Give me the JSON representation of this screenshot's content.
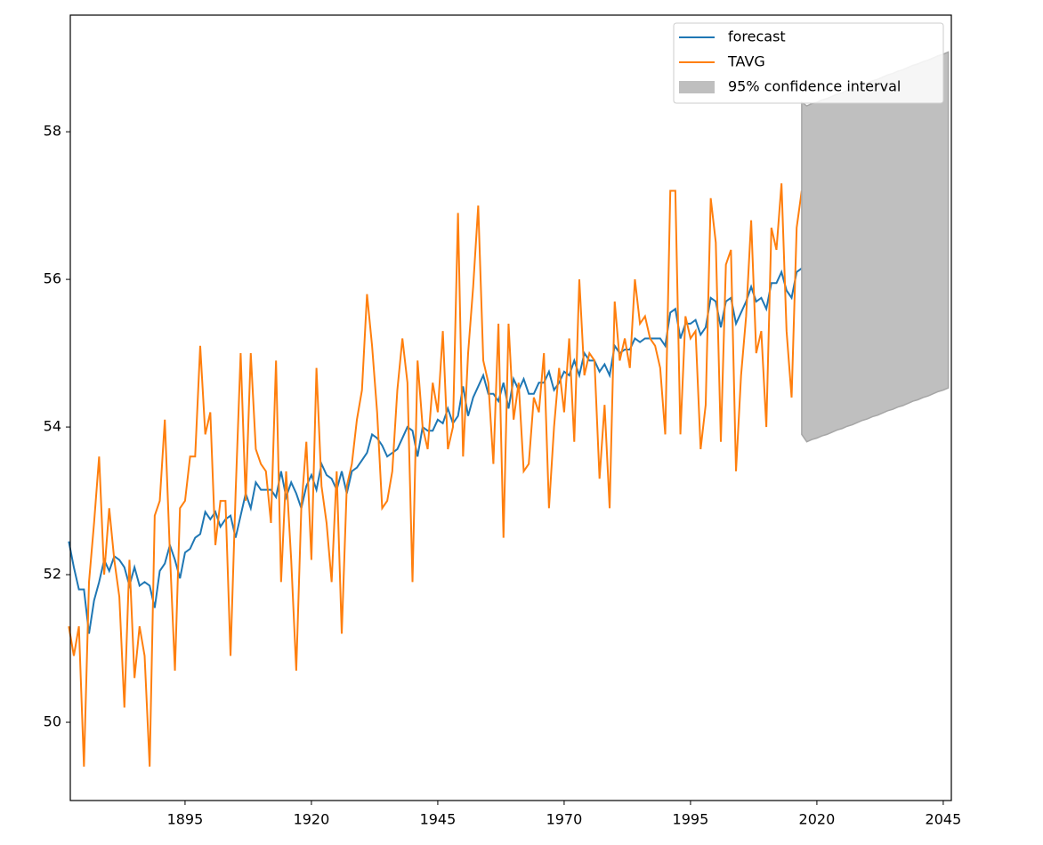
{
  "chart_data": {
    "type": "line",
    "x": [
      1872,
      1873,
      1874,
      1875,
      1876,
      1877,
      1878,
      1879,
      1880,
      1881,
      1882,
      1883,
      1884,
      1885,
      1886,
      1887,
      1888,
      1889,
      1890,
      1891,
      1892,
      1893,
      1894,
      1895,
      1896,
      1897,
      1898,
      1899,
      1900,
      1901,
      1902,
      1903,
      1904,
      1905,
      1906,
      1907,
      1908,
      1909,
      1910,
      1911,
      1912,
      1913,
      1914,
      1915,
      1916,
      1917,
      1918,
      1919,
      1920,
      1921,
      1922,
      1923,
      1924,
      1925,
      1926,
      1927,
      1928,
      1929,
      1930,
      1931,
      1932,
      1933,
      1934,
      1935,
      1936,
      1937,
      1938,
      1939,
      1940,
      1941,
      1942,
      1943,
      1944,
      1945,
      1946,
      1947,
      1948,
      1949,
      1950,
      1951,
      1952,
      1953,
      1954,
      1955,
      1956,
      1957,
      1958,
      1959,
      1960,
      1961,
      1962,
      1963,
      1964,
      1965,
      1966,
      1967,
      1968,
      1969,
      1970,
      1971,
      1972,
      1973,
      1974,
      1975,
      1976,
      1977,
      1978,
      1979,
      1980,
      1981,
      1982,
      1983,
      1984,
      1985,
      1986,
      1987,
      1988,
      1989,
      1990,
      1991,
      1992,
      1993,
      1994,
      1995,
      1996,
      1997,
      1998,
      1999,
      2000,
      2001,
      2002,
      2003,
      2004,
      2005,
      2006,
      2007,
      2008,
      2009,
      2010,
      2011,
      2012,
      2013,
      2014,
      2015,
      2016,
      2017,
      2018,
      2019,
      2020,
      2021,
      2022,
      2023,
      2024,
      2025,
      2026,
      2027,
      2028,
      2029,
      2030,
      2031,
      2032,
      2033,
      2034,
      2035,
      2036,
      2037,
      2038,
      2039,
      2040,
      2041,
      2042,
      2043,
      2044,
      2045,
      2046
    ],
    "series": [
      {
        "name": "forecast",
        "color": "#1f77b4",
        "values": [
          52.45,
          52.1,
          51.8,
          51.8,
          51.2,
          51.65,
          51.9,
          52.2,
          52.05,
          52.25,
          52.2,
          52.1,
          51.85,
          52.1,
          51.85,
          51.9,
          51.85,
          51.55,
          52.05,
          52.15,
          52.4,
          52.2,
          51.95,
          52.3,
          52.35,
          52.5,
          52.55,
          52.85,
          52.75,
          52.85,
          52.65,
          52.75,
          52.8,
          52.5,
          52.8,
          53.1,
          52.9,
          53.25,
          53.15,
          53.15,
          53.15,
          53.05,
          53.4,
          53.05,
          53.25,
          53.1,
          52.9,
          53.2,
          53.35,
          53.15,
          53.5,
          53.35,
          53.3,
          53.15,
          53.4,
          53.1,
          53.4,
          53.45,
          53.55,
          53.65,
          53.9,
          53.85,
          53.75,
          53.6,
          53.65,
          53.7,
          53.85,
          54.0,
          53.95,
          53.6,
          54.0,
          53.95,
          53.95,
          54.1,
          54.05,
          54.25,
          54.05,
          54.15,
          54.55,
          54.15,
          54.4,
          54.55,
          54.7,
          54.45,
          54.45,
          54.35,
          54.6,
          54.25,
          54.65,
          54.5,
          54.65,
          54.45,
          54.45,
          54.6,
          54.6,
          54.75,
          54.5,
          54.6,
          54.75,
          54.7,
          54.9,
          54.7,
          55.0,
          54.9,
          54.9,
          54.75,
          54.85,
          54.7,
          55.1,
          55.0,
          55.05,
          55.05,
          55.2,
          55.15,
          55.2,
          55.2,
          55.2,
          55.2,
          55.1,
          55.55,
          55.6,
          55.2,
          55.4,
          55.4,
          55.45,
          55.25,
          55.35,
          55.75,
          55.7,
          55.35,
          55.7,
          55.75,
          55.4,
          55.55,
          55.7,
          55.9,
          55.7,
          55.75,
          55.6,
          55.95,
          55.95,
          56.1,
          55.85,
          55.75,
          56.1,
          56.15,
          56.05,
          56.08,
          56.1,
          56.13,
          56.16,
          56.19,
          56.21,
          56.24,
          56.27,
          56.29,
          56.32,
          56.35,
          56.37,
          56.4,
          56.43,
          56.46,
          56.48,
          56.51,
          56.54,
          56.56,
          56.59,
          56.62,
          56.64,
          56.67,
          56.7,
          56.73,
          56.75,
          56.78,
          56.81
        ]
      },
      {
        "name": "TAVG",
        "color": "#ff7f0e",
        "values": [
          51.3,
          50.9,
          51.3,
          49.4,
          51.9,
          52.7,
          53.6,
          52.0,
          52.9,
          52.2,
          51.7,
          50.2,
          52.2,
          50.6,
          51.3,
          50.9,
          49.4,
          52.8,
          53.0,
          54.1,
          52.3,
          50.7,
          52.9,
          53.0,
          53.6,
          53.6,
          55.1,
          53.9,
          54.2,
          52.4,
          53.0,
          53.0,
          50.9,
          53.1,
          55.0,
          53.0,
          55.0,
          53.7,
          53.5,
          53.4,
          52.7,
          54.9,
          51.9,
          53.4,
          52.2,
          50.7,
          52.9,
          53.8,
          52.2,
          54.8,
          53.2,
          52.7,
          51.9,
          53.4,
          51.2,
          53.2,
          53.5,
          54.1,
          54.5,
          55.8,
          55.1,
          54.2,
          52.9,
          53.0,
          53.4,
          54.5,
          55.2,
          54.6,
          51.9,
          54.9,
          54.0,
          53.7,
          54.6,
          54.2,
          55.3,
          53.7,
          54.0,
          56.9,
          53.6,
          55.0,
          55.9,
          57.0,
          54.9,
          54.6,
          53.5,
          55.4,
          52.5,
          55.4,
          54.1,
          54.6,
          53.4,
          53.5,
          54.4,
          54.2,
          55.0,
          52.9,
          54.0,
          54.8,
          54.2,
          55.2,
          53.8,
          56.0,
          54.7,
          55.0,
          54.9,
          53.3,
          54.3,
          52.9,
          55.7,
          54.9,
          55.2,
          54.8,
          56.0,
          55.4,
          55.5,
          55.2,
          55.1,
          54.8,
          53.9,
          57.2,
          57.2,
          53.9,
          55.5,
          55.2,
          55.3,
          53.7,
          54.3,
          57.1,
          56.5,
          53.8,
          56.2,
          56.4,
          53.4,
          54.7,
          55.5,
          56.8,
          55.0,
          55.3,
          54.0,
          56.7,
          56.4,
          57.3,
          55.3,
          54.4,
          56.7,
          57.2,
          null,
          null,
          null,
          null,
          null,
          null,
          null,
          null,
          null,
          null,
          null,
          null,
          null,
          null,
          null,
          null,
          null,
          null,
          null,
          null,
          null,
          null,
          null,
          null,
          null,
          null,
          null,
          null,
          null
        ]
      }
    ],
    "band": {
      "name": "95% confidence interval",
      "color": "#bfbfbf",
      "x": [
        2017,
        2018,
        2019,
        2020,
        2021,
        2022,
        2023,
        2024,
        2025,
        2026,
        2027,
        2028,
        2029,
        2030,
        2031,
        2032,
        2033,
        2034,
        2035,
        2036,
        2037,
        2038,
        2039,
        2040,
        2041,
        2042,
        2043,
        2044,
        2045,
        2046
      ],
      "upper": [
        58.4,
        58.35,
        58.38,
        58.4,
        58.43,
        58.45,
        58.48,
        58.51,
        58.53,
        58.56,
        58.58,
        58.61,
        58.64,
        58.66,
        58.69,
        58.71,
        58.74,
        58.77,
        58.79,
        58.82,
        58.84,
        58.87,
        58.9,
        58.92,
        58.95,
        58.97,
        59.0,
        59.03,
        59.05,
        59.08
      ],
      "lower": [
        53.9,
        53.8,
        53.83,
        53.85,
        53.88,
        53.9,
        53.93,
        53.96,
        53.98,
        54.01,
        54.03,
        54.06,
        54.09,
        54.11,
        54.14,
        54.16,
        54.19,
        54.22,
        54.24,
        54.27,
        54.29,
        54.32,
        54.35,
        54.37,
        54.4,
        54.42,
        54.45,
        54.48,
        54.5,
        54.53
      ]
    },
    "xlim": [
      1872.3,
      2046.6
    ],
    "xticks": [
      1895,
      1920,
      1945,
      1970,
      1995,
      2020,
      2045
    ],
    "ylim": [
      48.94,
      59.58
    ],
    "yticks": [
      50,
      52,
      54,
      56,
      58
    ],
    "legend": "upper right"
  }
}
